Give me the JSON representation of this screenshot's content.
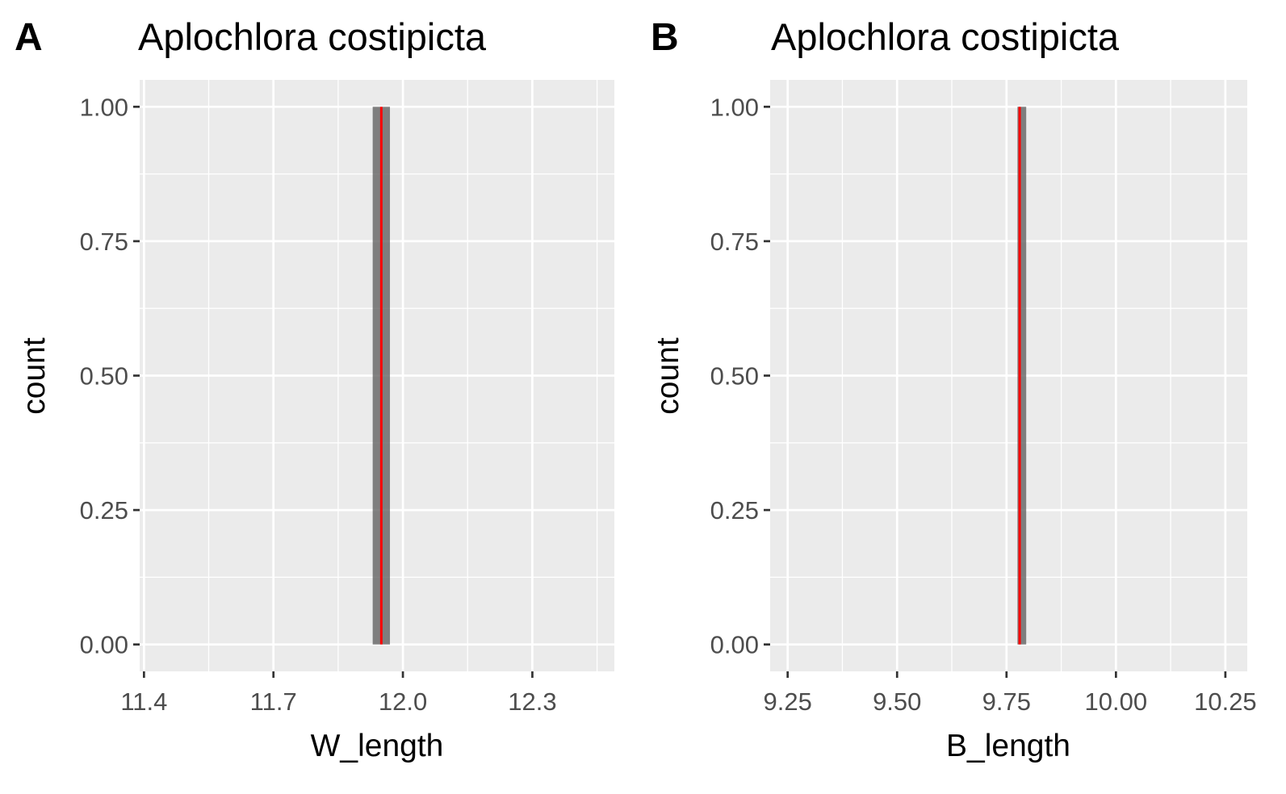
{
  "chart_data": [
    {
      "type": "bar",
      "panel_tag": "A",
      "title": "Aplochlora costipicta",
      "xlabel": "W_length",
      "ylabel": "count",
      "xlim": [
        11.39,
        12.49
      ],
      "ylim": [
        -0.05,
        1.05
      ],
      "x_ticks": [
        11.4,
        11.7,
        12.0,
        12.3
      ],
      "x_tick_labels": [
        "11.4",
        "11.7",
        "12.0",
        "12.3"
      ],
      "x_minor_ticks": [
        11.55,
        11.85,
        12.15,
        12.45
      ],
      "y_ticks": [
        0,
        0.25,
        0.5,
        0.75,
        1.0
      ],
      "y_tick_labels": [
        "0.00",
        "0.25",
        "0.50",
        "0.75",
        "1.00"
      ],
      "bins": [
        {
          "xmin": 11.93,
          "xmax": 11.97,
          "count": 1
        }
      ],
      "reference_line": {
        "x": 11.95,
        "color": "#ff0000"
      },
      "bar_color": "#595959",
      "grid": true
    },
    {
      "type": "bar",
      "panel_tag": "B",
      "title": "Aplochlora costipicta",
      "xlabel": "B_length",
      "ylabel": "count",
      "xlim": [
        9.21,
        10.3
      ],
      "ylim": [
        -0.05,
        1.05
      ],
      "x_ticks": [
        9.25,
        9.5,
        9.75,
        10.0,
        10.25
      ],
      "x_tick_labels": [
        "9.25",
        "9.50",
        "9.75",
        "10.00",
        "10.25"
      ],
      "x_minor_ticks": [
        9.375,
        9.625,
        9.875,
        10.125
      ],
      "y_ticks": [
        0,
        0.25,
        0.5,
        0.75,
        1.0
      ],
      "y_tick_labels": [
        "0.00",
        "0.25",
        "0.50",
        "0.75",
        "1.00"
      ],
      "bins": [
        {
          "xmin": 9.775,
          "xmax": 9.795,
          "count": 1
        }
      ],
      "reference_line": {
        "x": 9.78,
        "color": "#ff0000"
      },
      "bar_color": "#595959",
      "grid": true
    }
  ]
}
